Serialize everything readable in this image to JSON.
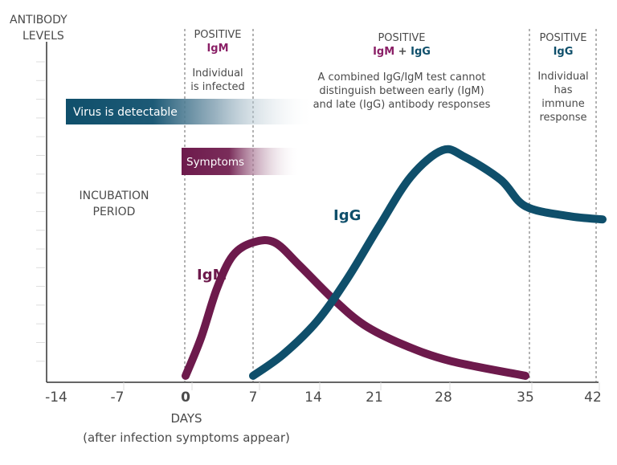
{
  "chart_data": {
    "type": "line",
    "ylabel": [
      "ANTIBODY",
      "LEVELS"
    ],
    "xlabel": [
      "DAYS",
      "(after infection symptoms appear)"
    ],
    "x_ticks": [
      "-14",
      "-7",
      "0",
      "7",
      "14",
      "21",
      "28",
      "35",
      "42"
    ],
    "x_tick_values": [
      -14,
      -7,
      0,
      7,
      14,
      21,
      28,
      35,
      42
    ],
    "xlim": [
      -15,
      43
    ],
    "ylim": [
      0,
      100
    ],
    "grid": false,
    "y_tick_labels_shown": false,
    "series": [
      {
        "name": "IgM",
        "color": "#6d1a4c",
        "x": [
          0,
          1.6,
          3.25,
          4.9,
          7,
          9.5,
          12.4,
          16.2,
          19.8,
          23.9,
          28.6,
          35
        ],
        "y": [
          0.5,
          12,
          27,
          37,
          41,
          41,
          34,
          24,
          16,
          10,
          5,
          0.5
        ]
      },
      {
        "name": "IgG",
        "color": "#0f4f6b",
        "x": [
          7,
          10.5,
          14.4,
          17.9,
          21.5,
          24.7,
          27.9,
          29.8,
          32.9,
          35,
          39.5,
          43
        ],
        "y": [
          0.5,
          7,
          17,
          30,
          46,
          61,
          69,
          67,
          60,
          52,
          49,
          48
        ]
      }
    ],
    "phase_dividers_days": [
      0,
      7,
      35,
      42
    ],
    "annotations": {
      "incubation": [
        "INCUBATION",
        "PERIOD"
      ],
      "phase1": {
        "title": "POSITIVE",
        "test": "IgM",
        "desc": [
          "Individual",
          "is infected"
        ]
      },
      "phase2": {
        "title": "POSITIVE",
        "test_a": "IgM",
        "plus": " + ",
        "test_b": "IgG",
        "desc": [
          "A combined IgG/IgM test cannot",
          "distinguish between early (IgM)",
          "and late (IgG) antibody responses"
        ]
      },
      "phase3": {
        "title": "POSITIVE",
        "test": "IgG",
        "desc": [
          "Individual",
          "has",
          "immune",
          "response"
        ]
      },
      "virus_bar": "Virus is detectable",
      "symptoms_bar": "Symptoms",
      "igm_label": "IgM",
      "igg_label": "IgG"
    },
    "colors": {
      "igm": "#6d1a4c",
      "igg": "#0f4f6b",
      "text": "#4a4a4a"
    }
  }
}
